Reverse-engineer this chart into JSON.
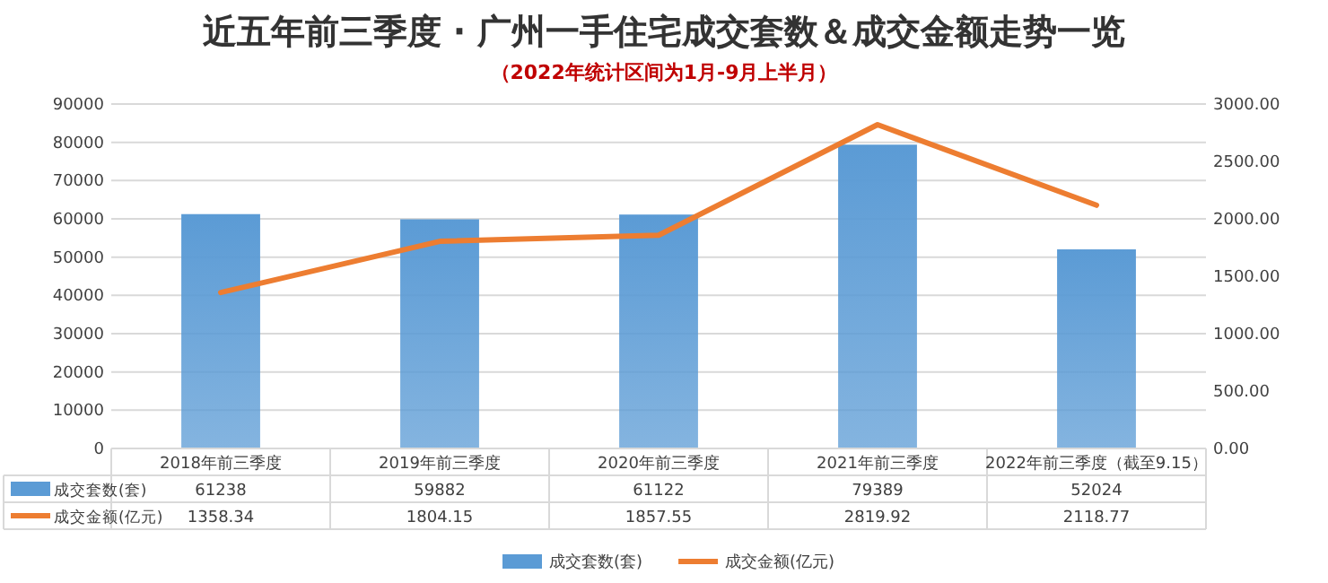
{
  "chart_data": {
    "type": "bar",
    "title": "近五年前三季度 · 广州一手住宅成交套数＆成交金额走势一览",
    "subtitle": "（2022年统计区间为1月-9月上半月）",
    "categories": [
      "2018年前三季度",
      "2019年前三季度",
      "2020年前三季度",
      "2021年前三季度",
      "2022年前三季度（截至9.15）"
    ],
    "series": [
      {
        "name": "成交套数(套)",
        "color": "#5b9bd5",
        "values": [
          61238,
          59882,
          61122,
          79389,
          52024
        ]
      },
      {
        "name": "成交金额(亿元)",
        "type": "line",
        "axis": "y2",
        "color": "#ed7d31",
        "values": [
          1358.34,
          1804.15,
          1857.55,
          2819.92,
          2118.77
        ]
      }
    ],
    "ylim": [
      0,
      90000
    ],
    "yticks": [
      0,
      10000,
      20000,
      30000,
      40000,
      50000,
      60000,
      70000,
      80000,
      90000
    ],
    "y2lim": [
      0,
      3000
    ],
    "y2ticks": [
      {
        "value": 0,
        "label": "0.00"
      },
      {
        "value": 500,
        "label": "500.00"
      },
      {
        "value": 1000,
        "label": "1000.00"
      },
      {
        "value": 1500,
        "label": "1500.00"
      },
      {
        "value": 2000,
        "label": "2000.00"
      },
      {
        "value": 2500,
        "label": "2500.00"
      },
      {
        "value": 3000,
        "label": "3000.00"
      }
    ],
    "grid": "y",
    "legend": "bottom",
    "data_labels": true,
    "marker": "none"
  }
}
